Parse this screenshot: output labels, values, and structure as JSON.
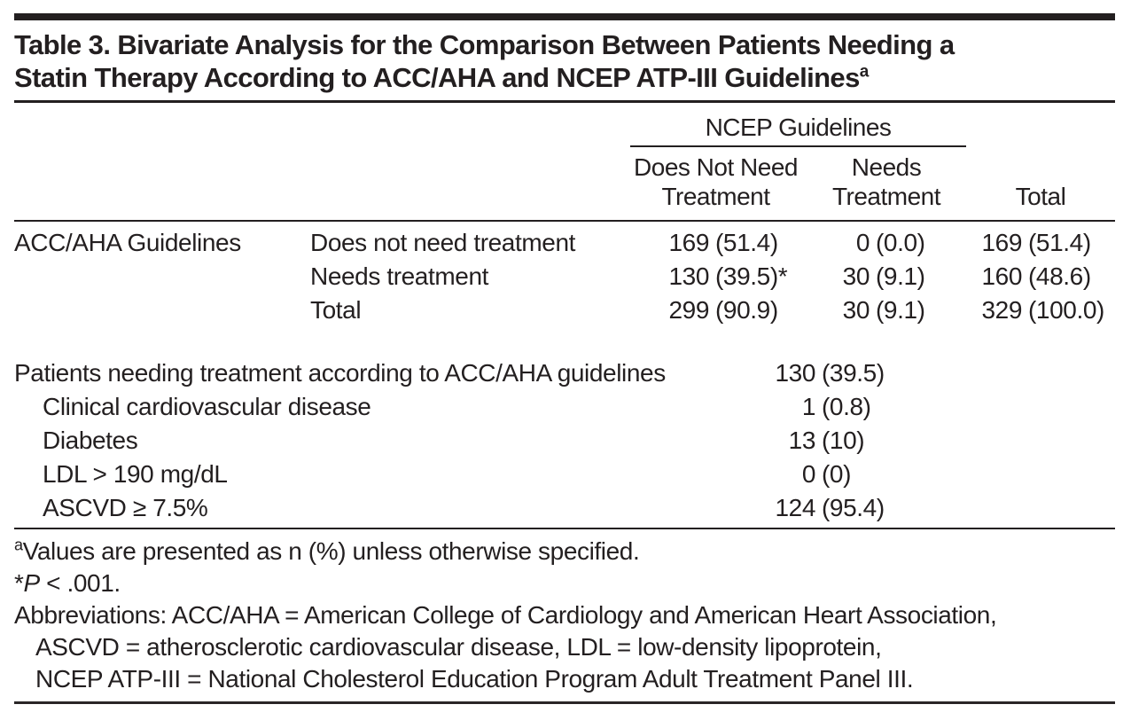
{
  "title": {
    "line1": "Table 3. Bivariate Analysis for the Comparison Between Patients Needing a",
    "line2": "Statin Therapy According to ACC/AHA and NCEP ATP-III Guidelines",
    "sup": "a"
  },
  "crosstab": {
    "spanner": "NCEP Guidelines",
    "col_headers": [
      {
        "lines": [
          "Does Not Need",
          "Treatment"
        ]
      },
      {
        "lines": [
          "Needs",
          "Treatment"
        ]
      },
      {
        "lines": [
          "Total"
        ]
      }
    ],
    "row_group_label": "ACC/AHA Guidelines",
    "rows": [
      {
        "label": "Does not need treatment",
        "cells": [
          {
            "n": "169",
            "p": "(51.4)"
          },
          {
            "n": "0",
            "p": "(0.0)"
          },
          {
            "n": "169",
            "p": "(51.4)"
          }
        ]
      },
      {
        "label": "Needs treatment",
        "cells": [
          {
            "n": "130",
            "p": "(39.5)*"
          },
          {
            "n": "30",
            "p": "(9.1)"
          },
          {
            "n": "160",
            "p": "(48.6)"
          }
        ]
      },
      {
        "label": "Total",
        "cells": [
          {
            "n": "299",
            "p": "(90.9)"
          },
          {
            "n": "30",
            "p": "(9.1)"
          },
          {
            "n": "329",
            "p": "(100.0)"
          }
        ]
      }
    ]
  },
  "breakdown": {
    "rows": [
      {
        "label": "Patients needing treatment according to ACC/AHA guidelines",
        "n": "130",
        "p": "(39.5)"
      },
      {
        "label": "Clinical cardiovascular disease",
        "n": "1",
        "p": "(0.8)"
      },
      {
        "label": "Diabetes",
        "n": "13",
        "p": "(10)"
      },
      {
        "label": "LDL > 190 mg/dL",
        "n": "0",
        "p": "(0)"
      },
      {
        "label": "ASCVD ≥ 7.5%",
        "n": "124",
        "p": "(95.4)"
      }
    ]
  },
  "footnotes": {
    "a_sup": "a",
    "a_text": "Values are presented as n (%) unless otherwise specified.",
    "p_star": "*",
    "p_italic": "P",
    "p_rest": " < .001.",
    "abbrev_line1": "Abbreviations: ACC/AHA = American College of Cardiology and American Heart Association,",
    "abbrev_line2": "ASCVD = atherosclerotic cardiovascular disease, LDL = low-density lipoprotein,",
    "abbrev_line3": "NCEP ATP-III = National Cholesterol Education Program Adult Treatment Panel III."
  },
  "colors": {
    "ink": "#231f20",
    "background": "#ffffff"
  }
}
